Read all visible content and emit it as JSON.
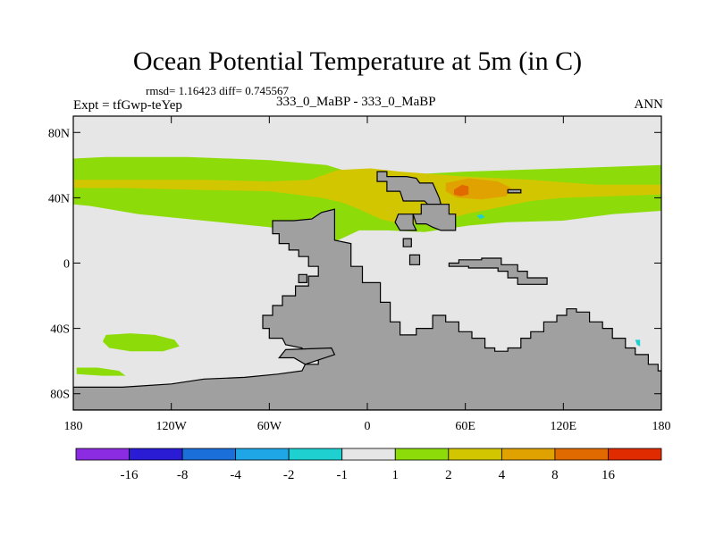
{
  "chart_data": {
    "type": "heatmap",
    "title": "Ocean Potential Temperature at 5m (in C)",
    "stats": "rmsd= 1.16423 diff= 0.745567",
    "case_label": "Expt = tfGwp-teYep",
    "comparison": "333_0_MaBP - 333_0_MaBP",
    "season": "ANN",
    "x_range": [
      -180,
      180
    ],
    "y_range": [
      -90,
      90
    ],
    "x_ticks": [
      {
        "value": -180,
        "label": "180"
      },
      {
        "value": -120,
        "label": "120W"
      },
      {
        "value": -60,
        "label": "60W"
      },
      {
        "value": 0,
        "label": "0"
      },
      {
        "value": 60,
        "label": "60E"
      },
      {
        "value": 120,
        "label": "120E"
      },
      {
        "value": 180,
        "label": "180"
      }
    ],
    "y_ticks": [
      {
        "value": 80,
        "label": "80N"
      },
      {
        "value": 40,
        "label": "40N"
      },
      {
        "value": 0,
        "label": "0"
      },
      {
        "value": -40,
        "label": "40S"
      },
      {
        "value": -80,
        "label": "80S"
      }
    ],
    "colorbar": {
      "colors": [
        "#8b2be2",
        "#2a1bd4",
        "#1a6fd9",
        "#1ea6e6",
        "#1fd0d0",
        "#e6e6e6",
        "#8ddc0a",
        "#d2c600",
        "#e0a200",
        "#e06a00",
        "#e02a00"
      ],
      "labels": [
        "-16",
        "-8",
        "-4",
        "-2",
        "-1",
        "1",
        "2",
        "4",
        "8",
        "16"
      ]
    },
    "colors": {
      "background": "#e6e6e6",
      "land": "#a0a0a0",
      "coast": "#000000",
      "anom_1_2": "#8ddc0a",
      "anom_2_4": "#d2c600",
      "anom_4_8": "#e0a200",
      "anom_8_16": "#e06a00",
      "anom_neg": "#1fd0d0"
    },
    "anomaly_regions": [
      {
        "level": "1-2",
        "color_key": "anom_1_2",
        "points": [
          [
            -180,
            64
          ],
          [
            -160,
            65
          ],
          [
            -110,
            65
          ],
          [
            -60,
            63
          ],
          [
            -25,
            60
          ],
          [
            -2,
            53
          ],
          [
            20,
            54
          ],
          [
            60,
            56
          ],
          [
            120,
            58
          ],
          [
            180,
            60
          ],
          [
            180,
            32
          ],
          [
            150,
            30
          ],
          [
            120,
            26
          ],
          [
            85,
            25
          ],
          [
            62,
            23
          ],
          [
            35,
            19
          ],
          [
            12,
            20
          ],
          [
            -5,
            20
          ],
          [
            -20,
            13
          ],
          [
            -30,
            14
          ],
          [
            -40,
            18
          ],
          [
            -60,
            22
          ],
          [
            -100,
            26
          ],
          [
            -140,
            30
          ],
          [
            -170,
            35
          ],
          [
            -180,
            36
          ]
        ]
      },
      {
        "level": "2-4",
        "color_key": "anom_2_4",
        "points": [
          [
            -180,
            51
          ],
          [
            -150,
            51
          ],
          [
            -100,
            51
          ],
          [
            -60,
            50
          ],
          [
            -35,
            51
          ],
          [
            -18,
            57
          ],
          [
            2,
            58
          ],
          [
            20,
            56
          ],
          [
            60,
            53
          ],
          [
            100,
            51
          ],
          [
            140,
            48
          ],
          [
            180,
            48
          ],
          [
            180,
            42
          ],
          [
            150,
            41
          ],
          [
            120,
            40
          ],
          [
            100,
            38
          ],
          [
            80,
            34
          ],
          [
            60,
            30
          ],
          [
            50,
            27
          ],
          [
            35,
            25
          ],
          [
            20,
            24
          ],
          [
            8,
            27
          ],
          [
            -5,
            33
          ],
          [
            -15,
            37
          ],
          [
            -28,
            40
          ],
          [
            -60,
            44
          ],
          [
            -110,
            45
          ],
          [
            -150,
            46
          ],
          [
            -180,
            46
          ]
        ]
      },
      {
        "level": "1-2 (south)",
        "color_key": "anom_1_2",
        "points": [
          [
            -160,
            -44
          ],
          [
            -145,
            -43
          ],
          [
            -130,
            -44
          ],
          [
            -118,
            -47
          ],
          [
            -115,
            -51
          ],
          [
            -125,
            -54
          ],
          [
            -145,
            -54
          ],
          [
            -158,
            -52
          ],
          [
            -162,
            -48
          ]
        ]
      },
      {
        "level": "1-2 (south-west)",
        "color_key": "anom_1_2",
        "points": [
          [
            -178,
            -64
          ],
          [
            -165,
            -64
          ],
          [
            -152,
            -66
          ],
          [
            -148,
            -69
          ],
          [
            -162,
            -69
          ],
          [
            -178,
            -68
          ]
        ]
      },
      {
        "level": "4-8",
        "color_key": "anom_4_8",
        "points": [
          [
            48,
            49
          ],
          [
            62,
            52
          ],
          [
            80,
            50
          ],
          [
            88,
            46
          ],
          [
            85,
            41
          ],
          [
            70,
            39
          ],
          [
            55,
            40
          ],
          [
            48,
            44
          ]
        ]
      },
      {
        "level": "8-16",
        "color_key": "anom_8_16",
        "points": [
          [
            53,
            45
          ],
          [
            58,
            48
          ],
          [
            62,
            47
          ],
          [
            62,
            42
          ],
          [
            57,
            41
          ],
          [
            53,
            42
          ]
        ]
      },
      {
        "level": "-2--1",
        "color_key": "anom_neg",
        "points": [
          [
            67,
            29
          ],
          [
            70,
            30
          ],
          [
            72,
            28
          ],
          [
            69,
            27
          ]
        ]
      },
      {
        "level": "-2--1",
        "color_key": "anom_neg",
        "points": [
          [
            164,
            -47
          ],
          [
            167,
            -47
          ],
          [
            167,
            -51
          ],
          [
            165,
            -50
          ]
        ]
      }
    ],
    "land_regions": [
      {
        "name": "africa-eurasia",
        "points": [
          [
            -58,
            26
          ],
          [
            -45,
            26
          ],
          [
            -34,
            27
          ],
          [
            -28,
            31
          ],
          [
            -20,
            33
          ],
          [
            -20,
            14
          ],
          [
            -10,
            12
          ],
          [
            -10,
            -2
          ],
          [
            -3,
            -2
          ],
          [
            -3,
            -12
          ],
          [
            8,
            -12
          ],
          [
            8,
            -24
          ],
          [
            14,
            -24
          ],
          [
            14,
            -36
          ],
          [
            20,
            -36
          ],
          [
            20,
            -44
          ],
          [
            30,
            -44
          ],
          [
            30,
            -40
          ],
          [
            40,
            -40
          ],
          [
            40,
            -32
          ],
          [
            48,
            -32
          ],
          [
            48,
            -36
          ],
          [
            56,
            -36
          ],
          [
            56,
            -42
          ],
          [
            64,
            -42
          ],
          [
            64,
            -46
          ],
          [
            72,
            -46
          ],
          [
            72,
            -52
          ],
          [
            78,
            -52
          ],
          [
            78,
            -54
          ],
          [
            86,
            -54
          ],
          [
            86,
            -52
          ],
          [
            94,
            -52
          ],
          [
            94,
            -46
          ],
          [
            100,
            -46
          ],
          [
            100,
            -42
          ],
          [
            108,
            -42
          ],
          [
            108,
            -36
          ],
          [
            116,
            -36
          ],
          [
            116,
            -32
          ],
          [
            122,
            -32
          ],
          [
            122,
            -28
          ],
          [
            128,
            -28
          ],
          [
            128,
            -30
          ],
          [
            136,
            -30
          ],
          [
            136,
            -36
          ],
          [
            144,
            -36
          ],
          [
            144,
            -40
          ],
          [
            150,
            -40
          ],
          [
            150,
            -46
          ],
          [
            158,
            -46
          ],
          [
            158,
            -52
          ],
          [
            164,
            -52
          ],
          [
            164,
            -56
          ],
          [
            172,
            -56
          ],
          [
            172,
            -62
          ],
          [
            178,
            -62
          ],
          [
            178,
            -66
          ],
          [
            180,
            -66
          ],
          [
            180,
            -90
          ],
          [
            -180,
            -90
          ],
          [
            -180,
            -76
          ],
          [
            -150,
            -76
          ],
          [
            -120,
            -74
          ],
          [
            -100,
            -71
          ],
          [
            -75,
            -70
          ],
          [
            -55,
            -68
          ],
          [
            -40,
            -66
          ],
          [
            -38,
            -62
          ],
          [
            -30,
            -62
          ],
          [
            -30,
            -58
          ],
          [
            -38,
            -58
          ],
          [
            -40,
            -52
          ],
          [
            -50,
            -50
          ],
          [
            -52,
            -46
          ],
          [
            -60,
            -46
          ],
          [
            -60,
            -40
          ],
          [
            -64,
            -40
          ],
          [
            -64,
            -32
          ],
          [
            -58,
            -32
          ],
          [
            -58,
            -26
          ],
          [
            -52,
            -26
          ],
          [
            -52,
            -20
          ],
          [
            -44,
            -20
          ],
          [
            -44,
            -14
          ],
          [
            -36,
            -14
          ],
          [
            -36,
            -8
          ],
          [
            -30,
            -8
          ],
          [
            -30,
            -2
          ],
          [
            -36,
            -2
          ],
          [
            -36,
            4
          ],
          [
            -42,
            4
          ],
          [
            -42,
            8
          ],
          [
            -48,
            8
          ],
          [
            -48,
            12
          ],
          [
            -54,
            12
          ],
          [
            -54,
            18
          ],
          [
            -58,
            18
          ]
        ]
      },
      {
        "name": "north-block-west",
        "points": [
          [
            6,
            56
          ],
          [
            12,
            56
          ],
          [
            12,
            53
          ],
          [
            24,
            53
          ],
          [
            30,
            52
          ],
          [
            32,
            49
          ],
          [
            40,
            49
          ],
          [
            44,
            40
          ],
          [
            45,
            36
          ],
          [
            37,
            36
          ],
          [
            35,
            38
          ],
          [
            22,
            38
          ],
          [
            20,
            44
          ],
          [
            12,
            44
          ],
          [
            12,
            50
          ],
          [
            6,
            50
          ]
        ]
      },
      {
        "name": "north-block-east",
        "points": [
          [
            33,
            36
          ],
          [
            50,
            36
          ],
          [
            50,
            30
          ],
          [
            54,
            30
          ],
          [
            54,
            20
          ],
          [
            45,
            20
          ],
          [
            40,
            22
          ],
          [
            36,
            24
          ],
          [
            30,
            24
          ],
          [
            28,
            30
          ],
          [
            33,
            30
          ]
        ]
      },
      {
        "name": "peninsula",
        "points": [
          [
            19,
            30
          ],
          [
            28,
            30
          ],
          [
            28,
            24
          ],
          [
            30,
            20
          ],
          [
            20,
            20
          ],
          [
            17,
            25
          ]
        ]
      },
      {
        "name": "island-central",
        "points": [
          [
            22,
            15
          ],
          [
            27,
            15
          ],
          [
            27,
            10
          ],
          [
            22,
            10
          ]
        ]
      },
      {
        "name": "small-island",
        "points": [
          [
            26,
            5
          ],
          [
            32,
            5
          ],
          [
            32,
            -1
          ],
          [
            26,
            -1
          ]
        ]
      },
      {
        "name": "east-island-chain",
        "points": [
          [
            50,
            0
          ],
          [
            56,
            0
          ],
          [
            56,
            2
          ],
          [
            70,
            2
          ],
          [
            70,
            3
          ],
          [
            82,
            3
          ],
          [
            82,
            -1
          ],
          [
            92,
            -1
          ],
          [
            92,
            -5
          ],
          [
            98,
            -5
          ],
          [
            98,
            -9
          ],
          [
            110,
            -9
          ],
          [
            110,
            -13
          ],
          [
            92,
            -13
          ],
          [
            92,
            -9
          ],
          [
            86,
            -9
          ],
          [
            86,
            -5
          ],
          [
            80,
            -5
          ],
          [
            80,
            -3
          ],
          [
            62,
            -3
          ],
          [
            62,
            -2
          ],
          [
            50,
            -2
          ]
        ]
      },
      {
        "name": "southern-arc",
        "points": [
          [
            -50,
            -53
          ],
          [
            -22,
            -52
          ],
          [
            -20,
            -56
          ],
          [
            -38,
            -62
          ],
          [
            -45,
            -58
          ],
          [
            -54,
            -58
          ]
        ]
      },
      {
        "name": "tiny-west",
        "points": [
          [
            -42,
            -7
          ],
          [
            -37,
            -7
          ],
          [
            -37,
            -12
          ],
          [
            -42,
            -12
          ]
        ]
      },
      {
        "name": "tiny-right",
        "points": [
          [
            86,
            45
          ],
          [
            94,
            45
          ],
          [
            94,
            43
          ],
          [
            86,
            43
          ]
        ]
      }
    ]
  }
}
